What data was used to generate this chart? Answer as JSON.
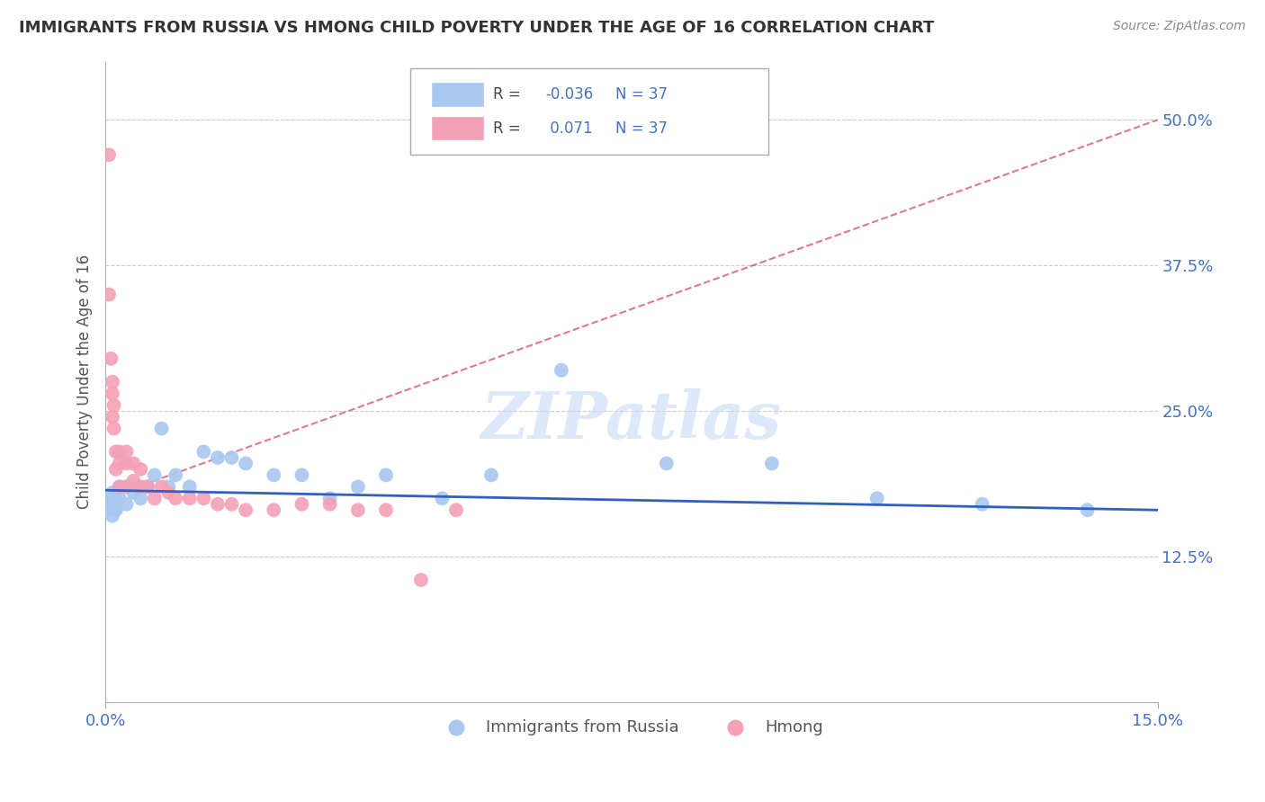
{
  "title": "IMMIGRANTS FROM RUSSIA VS HMONG CHILD POVERTY UNDER THE AGE OF 16 CORRELATION CHART",
  "source": "Source: ZipAtlas.com",
  "ylabel": "Child Poverty Under the Age of 16",
  "xlim": [
    0.0,
    0.15
  ],
  "ylim": [
    0.0,
    0.55
  ],
  "yticks": [
    0.125,
    0.25,
    0.375,
    0.5
  ],
  "ytick_labels": [
    "12.5%",
    "25.0%",
    "37.5%",
    "50.0%"
  ],
  "legend_r_russia": "-0.036",
  "legend_r_hmong": "0.071",
  "legend_n": "37",
  "russia_color": "#a8c8f0",
  "hmong_color": "#f4a0b5",
  "russia_line_color": "#3060c0",
  "hmong_line_color": "#d04060",
  "background_color": "#ffffff",
  "grid_color": "#cccccc",
  "title_color": "#333333",
  "tick_label_color": "#4472c4",
  "russia_scatter_x": [
    0.0008,
    0.0008,
    0.001,
    0.001,
    0.001,
    0.0012,
    0.0012,
    0.0015,
    0.002,
    0.002,
    0.003,
    0.003,
    0.004,
    0.005,
    0.006,
    0.007,
    0.008,
    0.009,
    0.01,
    0.012,
    0.014,
    0.016,
    0.018,
    0.02,
    0.024,
    0.028,
    0.032,
    0.036,
    0.04,
    0.048,
    0.055,
    0.065,
    0.08,
    0.095,
    0.11,
    0.125,
    0.14
  ],
  "russia_scatter_y": [
    0.175,
    0.165,
    0.18,
    0.17,
    0.16,
    0.175,
    0.165,
    0.165,
    0.185,
    0.175,
    0.185,
    0.17,
    0.18,
    0.175,
    0.185,
    0.195,
    0.235,
    0.185,
    0.195,
    0.185,
    0.215,
    0.21,
    0.21,
    0.205,
    0.195,
    0.195,
    0.175,
    0.185,
    0.195,
    0.175,
    0.195,
    0.285,
    0.205,
    0.205,
    0.175,
    0.17,
    0.165
  ],
  "hmong_scatter_x": [
    0.0005,
    0.0005,
    0.0008,
    0.001,
    0.001,
    0.001,
    0.0012,
    0.0012,
    0.0015,
    0.0015,
    0.002,
    0.002,
    0.002,
    0.003,
    0.003,
    0.003,
    0.004,
    0.004,
    0.005,
    0.005,
    0.006,
    0.007,
    0.008,
    0.009,
    0.01,
    0.012,
    0.014,
    0.016,
    0.018,
    0.02,
    0.024,
    0.028,
    0.032,
    0.036,
    0.04,
    0.045,
    0.05
  ],
  "hmong_scatter_y": [
    0.47,
    0.35,
    0.295,
    0.275,
    0.265,
    0.245,
    0.255,
    0.235,
    0.215,
    0.2,
    0.215,
    0.205,
    0.185,
    0.215,
    0.205,
    0.185,
    0.205,
    0.19,
    0.2,
    0.185,
    0.185,
    0.175,
    0.185,
    0.18,
    0.175,
    0.175,
    0.175,
    0.17,
    0.17,
    0.165,
    0.165,
    0.17,
    0.17,
    0.165,
    0.165,
    0.105,
    0.165
  ],
  "russia_trend_x0": 0.0,
  "russia_trend_y0": 0.182,
  "russia_trend_x1": 0.15,
  "russia_trend_y1": 0.165,
  "hmong_trend_x0": 0.0,
  "hmong_trend_y0": 0.175,
  "hmong_trend_x1": 0.15,
  "hmong_trend_y1": 0.5,
  "watermark_text": "ZIPatlas"
}
